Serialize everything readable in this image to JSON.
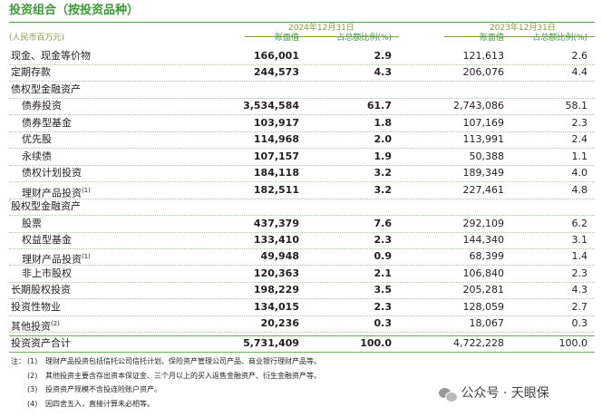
{
  "header": {
    "title": "投资组合（按投资品种）",
    "unit": "(人民币百万元)",
    "periods": [
      "2024年12月31日",
      "2023年12月31日"
    ],
    "columns": [
      "账面值",
      "占总额比例(%)",
      "账面值",
      "占总额比例(%)"
    ]
  },
  "table": {
    "rows": [
      {
        "label": "现金、现金等价物",
        "values": [
          "166,001",
          "2.9",
          "121,613",
          "2.6"
        ]
      },
      {
        "label": "定期存款",
        "values": [
          "244,573",
          "4.3",
          "206,076",
          "4.4"
        ]
      },
      {
        "label": "债权型金融资产",
        "items": [
          {
            "label": "债券投资",
            "values": [
              "3,534,584",
              "61.7",
              "2,743,086",
              "58.1"
            ]
          },
          {
            "label": "债券型基金",
            "values": [
              "103,917",
              "1.8",
              "107,169",
              "2.3"
            ]
          },
          {
            "label": "优先股",
            "values": [
              "114,968",
              "2.0",
              "113,991",
              "2.4"
            ]
          },
          {
            "label": "永续债",
            "values": [
              "107,157",
              "1.9",
              "50,388",
              "1.1"
            ]
          },
          {
            "label": "债权计划投资",
            "values": [
              "184,118",
              "3.2",
              "189,349",
              "4.0"
            ]
          },
          {
            "label": "理财产品投资",
            "note": "(1)",
            "values": [
              "182,511",
              "3.2",
              "227,461",
              "4.8"
            ]
          }
        ]
      },
      {
        "label": "股权型金融资产",
        "items": [
          {
            "label": "股票",
            "values": [
              "437,379",
              "7.6",
              "292,109",
              "6.2"
            ]
          },
          {
            "label": "权益型基金",
            "values": [
              "133,410",
              "2.3",
              "144,340",
              "3.1"
            ]
          },
          {
            "label": "理财产品投资",
            "note": "(1)",
            "values": [
              "49,948",
              "0.9",
              "68,399",
              "1.4"
            ]
          },
          {
            "label": "非上市股权",
            "values": [
              "120,363",
              "2.1",
              "106,840",
              "2.3"
            ]
          }
        ]
      },
      {
        "label": "长期股权投资",
        "values": [
          "198,229",
          "3.5",
          "205,281",
          "4.3"
        ]
      },
      {
        "label": "投资性物业",
        "values": [
          "134,015",
          "2.3",
          "128,059",
          "2.7"
        ]
      },
      {
        "label": "其他投资",
        "note": "(2)",
        "values": [
          "20,236",
          "0.3",
          "18,067",
          "0.3"
        ]
      }
    ],
    "total": {
      "label": "投资资产合计",
      "values": [
        "5,731,409",
        "100.0",
        "4,722,228",
        "100.0"
      ]
    }
  },
  "notes": {
    "prefix": "注：",
    "items": [
      {
        "marker": "(1)",
        "text": "理财产品投资包括信托公司信托计划、保险资产管理公司产品、商业银行理财产品等。"
      },
      {
        "marker": "(2)",
        "text": "其他投资主要含存出资本保证金、三个月以上的买入返售金融资产、衍生金融资产等。"
      },
      {
        "marker": "(3)",
        "text": "投资资产规模不含投连险账户资产。"
      },
      {
        "marker": "(4)",
        "text": "因四舍五入，直接计算未必相等。"
      }
    ]
  },
  "watermark": "公众号 · 天眼保"
}
